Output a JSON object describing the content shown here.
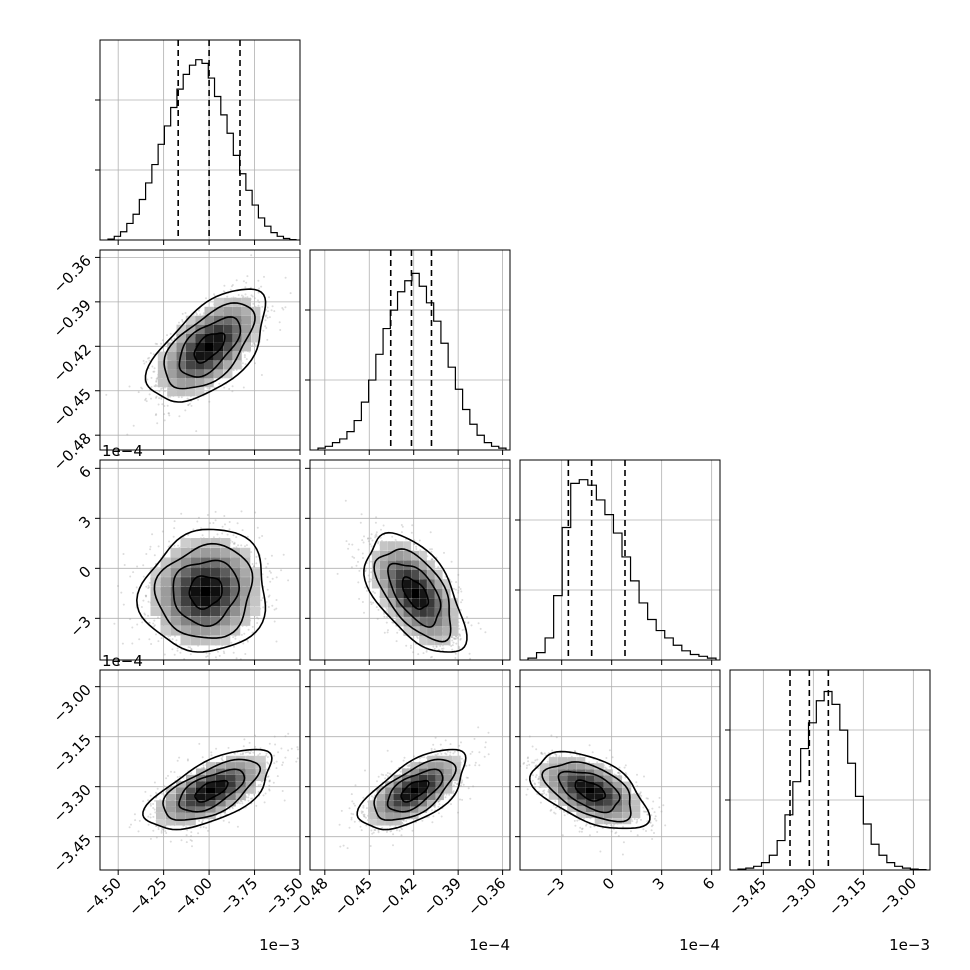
{
  "chart_data": {
    "type": "corner",
    "parameters": [
      {
        "range": [
          -4.6,
          -3.5
        ],
        "ticks": [
          -4.5,
          -4.25,
          -4.0,
          -3.75,
          -3.5
        ],
        "tick_labels": [
          "−4.50",
          "−4.25",
          "−4.00",
          "−3.75",
          "−3.50"
        ],
        "offset": "1e−3",
        "quantiles": [
          -4.17,
          -4.0,
          -3.83
        ],
        "hist_y": [
          0.005,
          0.02,
          0.045,
          0.09,
          0.14,
          0.22,
          0.31,
          0.41,
          0.52,
          0.62,
          0.72,
          0.82,
          0.9,
          0.95,
          0.98,
          0.96,
          0.88,
          0.78,
          0.68,
          0.58,
          0.46,
          0.36,
          0.27,
          0.19,
          0.12,
          0.075,
          0.04,
          0.02,
          0.008,
          0.002
        ]
      },
      {
        "range": [
          -0.49,
          -0.355
        ],
        "ticks": [
          -0.48,
          -0.45,
          -0.42,
          -0.39,
          -0.36
        ],
        "tick_labels": [
          "−0.48",
          "−0.45",
          "−0.42",
          "−0.39",
          "−0.36"
        ],
        "offset": "1e−4",
        "quantiles": [
          -0.4355,
          -0.4215,
          -0.408
        ],
        "hist_y": [
          0.01,
          0.02,
          0.04,
          0.06,
          0.1,
          0.16,
          0.26,
          0.38,
          0.52,
          0.66,
          0.76,
          0.86,
          0.92,
          0.96,
          0.89,
          0.8,
          0.7,
          0.58,
          0.45,
          0.33,
          0.22,
          0.14,
          0.08,
          0.04,
          0.02,
          0.01
        ]
      },
      {
        "range": [
          -5.5,
          6.5
        ],
        "ticks": [
          -3,
          0,
          3,
          6
        ],
        "tick_labels": [
          "−3",
          "0",
          "3",
          "6"
        ],
        "offset": "1e−4",
        "quantiles": [
          -2.6,
          -1.2,
          0.8
        ],
        "hist_y": [
          0.01,
          0.04,
          0.12,
          0.35,
          0.72,
          0.96,
          0.98,
          0.95,
          0.87,
          0.79,
          0.69,
          0.56,
          0.43,
          0.31,
          0.22,
          0.16,
          0.12,
          0.08,
          0.05,
          0.03,
          0.02,
          0.01
        ]
      },
      {
        "range": [
          -3.55,
          -2.95
        ],
        "ticks": [
          -3.45,
          -3.3,
          -3.15,
          -3.0
        ],
        "tick_labels": [
          "−3.45",
          "−3.30",
          "−3.15",
          "−3.00"
        ],
        "offset": "1e−3",
        "quantiles": [
          -3.37,
          -3.312,
          -3.255
        ],
        "hist_y": [
          0.005,
          0.01,
          0.02,
          0.04,
          0.08,
          0.16,
          0.3,
          0.48,
          0.66,
          0.8,
          0.92,
          0.97,
          0.9,
          0.76,
          0.58,
          0.4,
          0.25,
          0.14,
          0.08,
          0.04,
          0.02,
          0.01,
          0.005,
          0.002
        ]
      }
    ],
    "pairs": [
      {
        "i": 1,
        "j": 0,
        "center": [
          -4.0,
          -0.4205
        ],
        "sigma": [
          0.14,
          0.0165
        ],
        "rho": 0.58
      },
      {
        "i": 2,
        "j": 0,
        "center": [
          -4.02,
          -1.4
        ],
        "sigma": [
          0.15,
          1.6
        ],
        "rho": 0.08
      },
      {
        "i": 2,
        "j": 1,
        "center": [
          -0.419,
          -1.5
        ],
        "sigma": [
          0.0145,
          1.55
        ],
        "rho": -0.55
      },
      {
        "i": 3,
        "j": 0,
        "center": [
          -3.99,
          -3.312
        ],
        "sigma": [
          0.15,
          0.052
        ],
        "rho": 0.62
      },
      {
        "i": 3,
        "j": 1,
        "center": [
          -0.4195,
          -3.312
        ],
        "sigma": [
          0.0155,
          0.052
        ],
        "rho": 0.62
      },
      {
        "i": 3,
        "j": 2,
        "center": [
          -1.3,
          -3.312
        ],
        "sigma": [
          1.5,
          0.05
        ],
        "rho": -0.5
      }
    ]
  }
}
